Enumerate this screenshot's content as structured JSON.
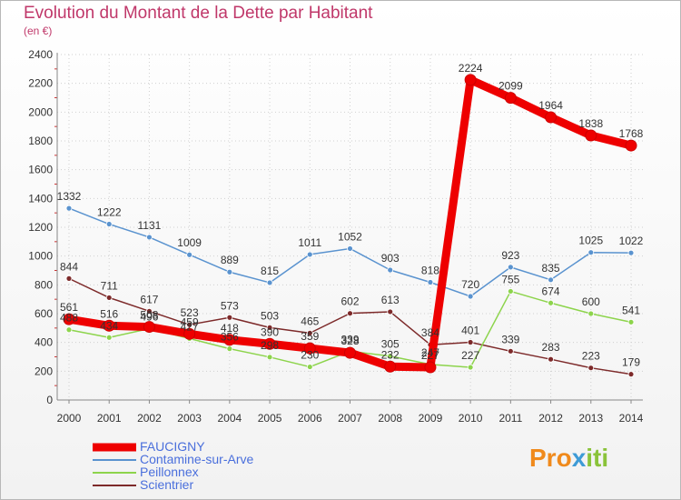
{
  "header": {
    "title": "Evolution du Montant de la Dette par Habitant",
    "subtitle": "(en €)"
  },
  "brand": {
    "part1": "Pro",
    "part2": "x",
    "part3": "iti"
  },
  "colors": {
    "title": "#c0386a",
    "legend_text": "#4a6fdc",
    "grid": "#d0d0d0"
  },
  "chart_data": {
    "type": "line",
    "x": [
      2000,
      2001,
      2002,
      2003,
      2004,
      2005,
      2006,
      2007,
      2008,
      2009,
      2010,
      2011,
      2012,
      2013,
      2014
    ],
    "ylim": [
      0,
      2400
    ],
    "yticks": [
      0,
      200,
      400,
      600,
      800,
      1000,
      1200,
      1400,
      1600,
      1800,
      2000,
      2200,
      2400
    ],
    "grid": true,
    "legend_position": "bottom-left",
    "series": [
      {
        "name": "FAUCIGNY",
        "color": "#ee0000",
        "values": [
          561,
          516,
          508,
          459,
          418,
          390,
          359,
          328,
          232,
          227,
          2224,
          2099,
          1964,
          1838,
          1768
        ],
        "labels": [
          "561",
          "516",
          "508",
          "459",
          "418",
          "390",
          "359",
          "328",
          "232",
          "227",
          "2224",
          "2099",
          "1964",
          "1838",
          "1768"
        ]
      },
      {
        "name": "Contamine-sur-Arve",
        "color": "#5a93cf",
        "values": [
          1332,
          1222,
          1131,
          1009,
          889,
          815,
          1011,
          1052,
          903,
          818,
          720,
          923,
          835,
          1025,
          1022
        ],
        "labels": [
          "1332",
          "1222",
          "1131",
          "1009",
          "889",
          "815",
          "1011",
          "1052",
          "903",
          "818",
          "720",
          "923",
          "835",
          "1025",
          "1022"
        ]
      },
      {
        "name": "Peillonnex",
        "color": "#8dd44c",
        "values": [
          488,
          434,
          496,
          427,
          356,
          298,
          230,
          339,
          305,
          247,
          227,
          755,
          674,
          600,
          541
        ],
        "labels": [
          "488",
          "434",
          "496",
          "427",
          "356",
          "298",
          "230",
          "339",
          "305",
          "247",
          "227",
          "755",
          "674",
          "600",
          "541"
        ]
      },
      {
        "name": "Scientrier",
        "color": "#7d2a2a",
        "values": [
          844,
          711,
          617,
          523,
          573,
          503,
          465,
          602,
          613,
          384,
          401,
          339,
          283,
          223,
          179
        ],
        "labels": [
          "844",
          "711",
          "617",
          "523",
          "573",
          "503",
          "465",
          "602",
          "613",
          "384",
          "401",
          "339",
          "283",
          "223",
          "179"
        ]
      }
    ]
  }
}
